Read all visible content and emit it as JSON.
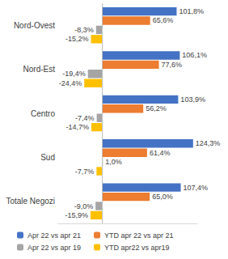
{
  "chart_data": {
    "type": "bar",
    "orientation": "horizontal",
    "categories": [
      "Nord-Ovest",
      "Nord-Est",
      "Centro",
      "Sud",
      "Totale Negozi"
    ],
    "series": [
      {
        "name": "Apr 22 vs apr 21",
        "color": "#4472c4",
        "values": [
          101.8,
          106.1,
          103.9,
          124.3,
          107.4
        ],
        "value_labels": [
          "101,8%",
          "106,1%",
          "103,9%",
          "124,3%",
          "107,4%"
        ]
      },
      {
        "name": "YTD apr 22 vs apr 21",
        "color": "#ed7d31",
        "values": [
          65.6,
          77.6,
          56.2,
          61.4,
          65.0
        ],
        "value_labels": [
          "65,6%",
          "77,6%",
          "56,2%",
          "61,4%",
          "65,0%"
        ]
      },
      {
        "name": "Apr 22 vs apr 19",
        "color": "#a5a5a5",
        "values": [
          -8.3,
          -19.4,
          -7.4,
          1.0,
          -9.0
        ],
        "value_labels": [
          "-8,3%",
          "-19,4%",
          "-7,4%",
          "1,0%",
          "-9,0%"
        ]
      },
      {
        "name": "YTD apr22 vs apr19",
        "color": "#ffc000",
        "values": [
          -15.2,
          -24.4,
          -14.7,
          -7.7,
          -15.9
        ],
        "value_labels": [
          "-15,2%",
          "-24,4%",
          "-14,7%",
          "-7,7%",
          "-15,9%"
        ]
      }
    ],
    "xlim": [
      -60,
      130
    ],
    "data_labels": true,
    "tick_labels": "y",
    "grid": false,
    "legend": "bottom"
  }
}
